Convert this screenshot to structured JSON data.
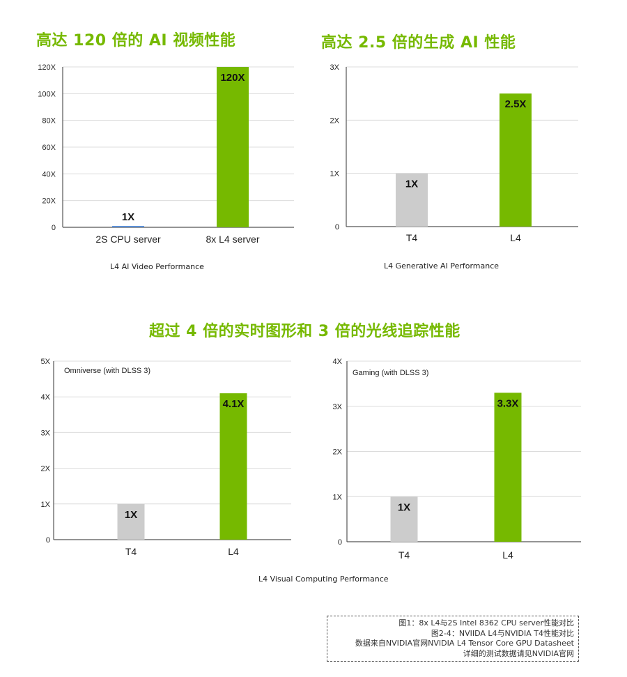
{
  "headings": {
    "top_left": "高达 120 倍的 AI 视频性能",
    "top_right": "高达 2.5 倍的生成 AI 性能",
    "middle": "超过 4 倍的实时图形和 3 倍的光线追踪性能"
  },
  "captions": {
    "video": "L4 AI Video Performance",
    "generative": "L4 Generative AI Performance",
    "visual": "L4 Visual Computing Performance"
  },
  "notes": [
    "图1：8x L4与2S Intel 8362 CPU server性能对比",
    "图2-4：NVIIDA L4与NVIDIA T4性能对比",
    "数据来自NVIDIA官网NVIDIA L4 Tensor Core GPU Datasheet",
    "详细的测试数据请见NVIDIA官网"
  ],
  "colors": {
    "accent": "#76b900",
    "baseline_gray": "#cccccc",
    "cpu_blue": "#5b8fd6"
  },
  "chart_data": [
    {
      "type": "bar",
      "categories": [
        "2S CPU server",
        "8x L4 server"
      ],
      "values": [
        1,
        120
      ],
      "data_labels": [
        "1X",
        "120X"
      ],
      "ylim": [
        0,
        120
      ],
      "yticks": [
        0,
        20,
        40,
        60,
        80,
        100,
        120
      ],
      "ytick_labels": [
        "0",
        "20X",
        "40X",
        "60X",
        "80X",
        "100X",
        "120X"
      ],
      "bar_colors": [
        "#5b8fd6",
        "#76b900"
      ],
      "grid": true
    },
    {
      "type": "bar",
      "categories": [
        "T4",
        "L4"
      ],
      "values": [
        1,
        2.5
      ],
      "data_labels": [
        "1X",
        "2.5X"
      ],
      "ylim": [
        0,
        3
      ],
      "yticks": [
        0,
        1,
        2,
        3
      ],
      "ytick_labels": [
        "0",
        "1X",
        "2X",
        "3X"
      ],
      "bar_colors": [
        "#cccccc",
        "#76b900"
      ],
      "grid": true
    },
    {
      "type": "bar",
      "title": "Omniverse (with DLSS 3)",
      "categories": [
        "T4",
        "L4"
      ],
      "values": [
        1,
        4.1
      ],
      "data_labels": [
        "1X",
        "4.1X"
      ],
      "ylim": [
        0,
        5
      ],
      "yticks": [
        0,
        1,
        2,
        3,
        4,
        5
      ],
      "ytick_labels": [
        "0",
        "1X",
        "2X",
        "3X",
        "4X",
        "5X"
      ],
      "bar_colors": [
        "#cccccc",
        "#76b900"
      ],
      "grid": true
    },
    {
      "type": "bar",
      "title": "Gaming (with DLSS 3)",
      "categories": [
        "T4",
        "L4"
      ],
      "values": [
        1,
        3.3
      ],
      "data_labels": [
        "1X",
        "3.3X"
      ],
      "ylim": [
        0,
        4
      ],
      "yticks": [
        0,
        1,
        2,
        3,
        4
      ],
      "ytick_labels": [
        "0",
        "1X",
        "2X",
        "3X",
        "4X"
      ],
      "bar_colors": [
        "#cccccc",
        "#76b900"
      ],
      "grid": true
    }
  ]
}
